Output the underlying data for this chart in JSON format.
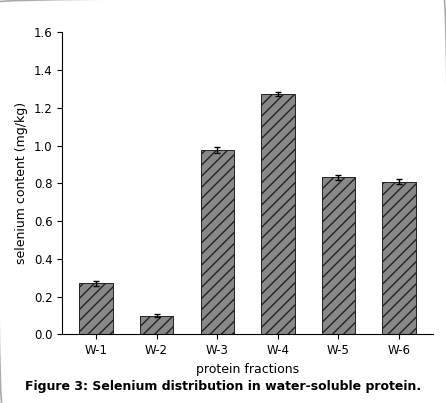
{
  "categories": [
    "W-1",
    "W-2",
    "W-3",
    "W-4",
    "W-5",
    "W-6"
  ],
  "values": [
    0.27,
    0.1,
    0.975,
    1.275,
    0.832,
    0.808
  ],
  "errors": [
    0.012,
    0.008,
    0.015,
    0.01,
    0.012,
    0.014
  ],
  "bar_color": "#888888",
  "bar_edgecolor": "#222222",
  "hatch": "///",
  "xlabel": "protein fractions",
  "ylabel": "selenium content (mg/kg)",
  "ylim": [
    0,
    1.6
  ],
  "yticks": [
    0.0,
    0.2,
    0.4,
    0.6,
    0.8,
    1.0,
    1.2,
    1.4,
    1.6
  ],
  "caption": "Figure 3: Selenium distribution in water-soluble protein.",
  "bar_width": 0.55,
  "background_color": "#ffffff",
  "axis_color": "#000000",
  "tick_color": "#000000",
  "label_fontsize": 9,
  "tick_fontsize": 8.5,
  "caption_fontsize": 9
}
